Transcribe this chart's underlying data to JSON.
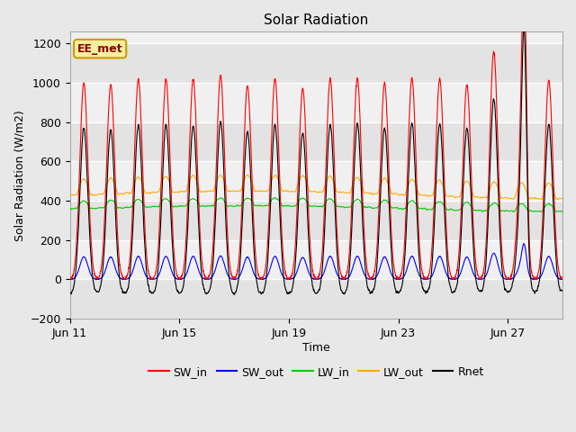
{
  "title": "Solar Radiation",
  "xlabel": "Time",
  "ylabel": "Solar Radiation (W/m2)",
  "ylim": [
    -200,
    1260
  ],
  "yticks": [
    -200,
    0,
    200,
    400,
    600,
    800,
    1000,
    1200
  ],
  "legend_entries": [
    "SW_in",
    "SW_out",
    "LW_in",
    "LW_out",
    "Rnet"
  ],
  "legend_colors": [
    "#ff0000",
    "#0000ff",
    "#00cc00",
    "#ffaa00",
    "#000000"
  ],
  "legend_linestyles": [
    "-",
    "-",
    "-",
    "-",
    "-"
  ],
  "annotation_text": "EE_met",
  "background_color": "#e8e8e8",
  "plot_bg_color": "#f0f0f0",
  "grid_color": "#ffffff",
  "xlim_start": 11,
  "xlim_end": 29,
  "xtick_days": [
    11,
    15,
    19,
    23,
    27
  ],
  "n_days": 18,
  "start_day": 11,
  "pts_per_hour": 6,
  "SW_in_peak": 1000,
  "SW_out_peak": 110,
  "LW_in_base": 360,
  "LW_in_amp": 50,
  "LW_out_base": 430,
  "LW_out_amp": 80,
  "Rnet_night": -70
}
